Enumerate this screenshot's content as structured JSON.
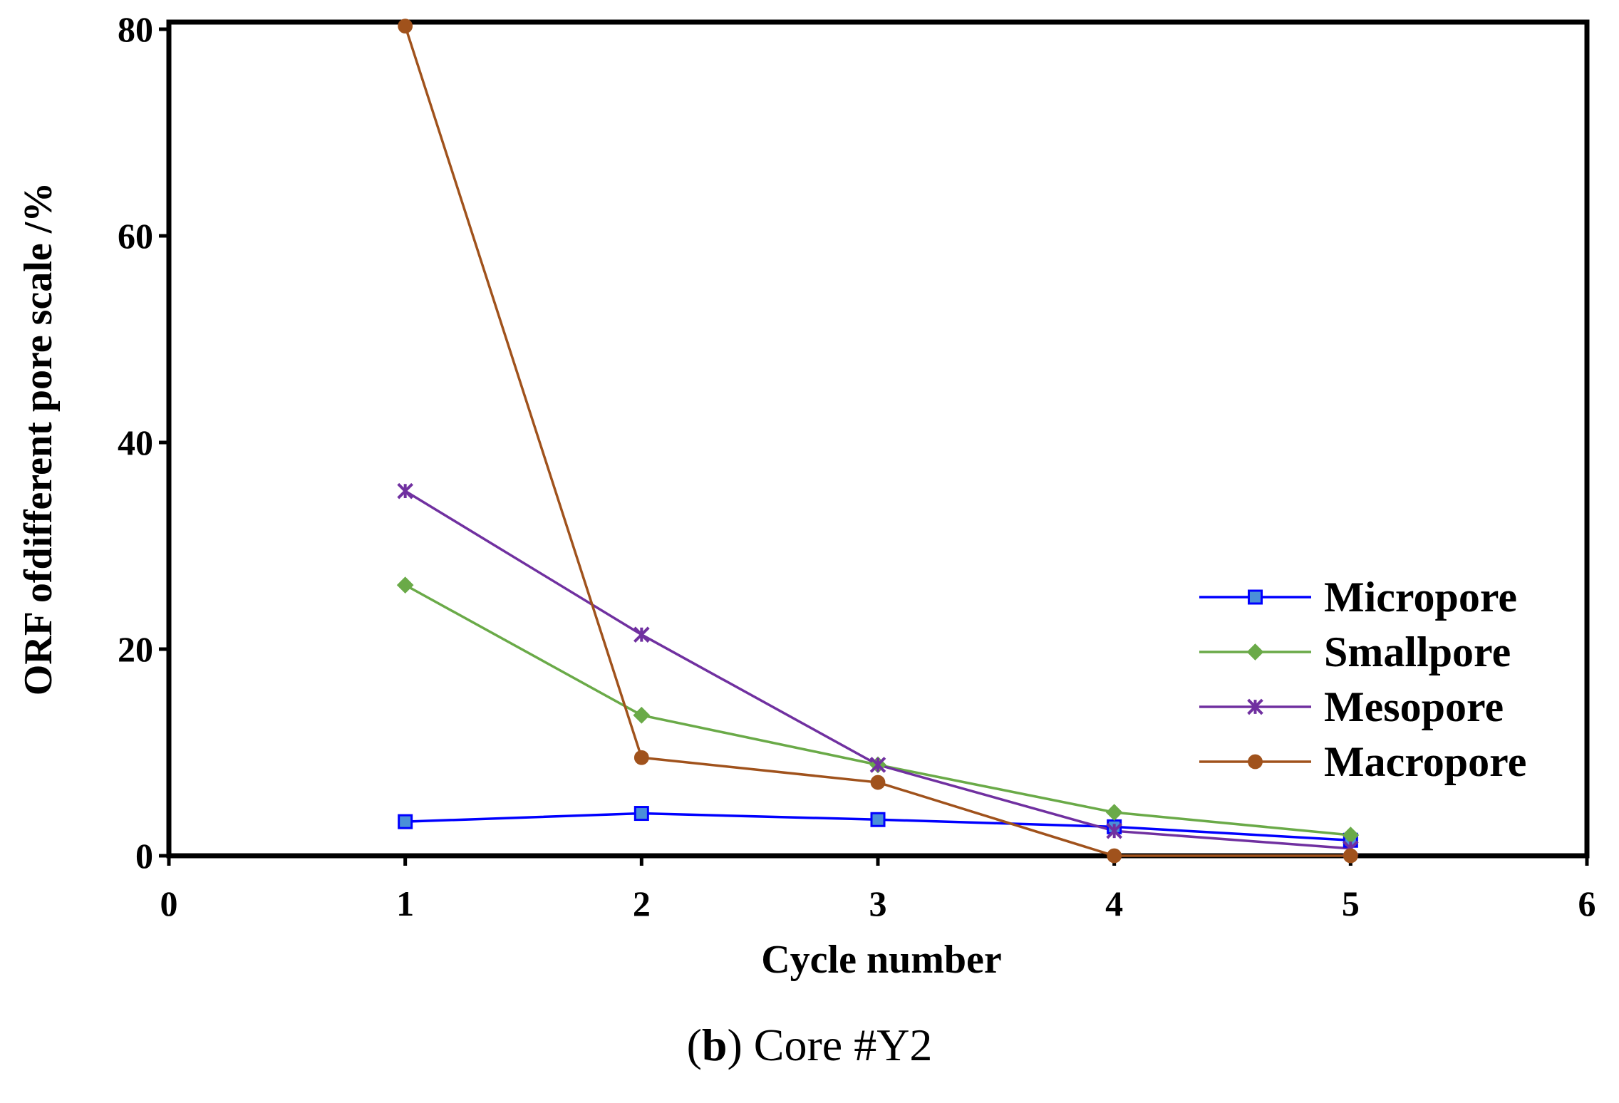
{
  "chart_data": {
    "type": "line",
    "title": "",
    "xlabel": "Cycle number",
    "ylabel": "ORF ofdifferent pore scale /%",
    "xlim": [
      0,
      6
    ],
    "ylim": [
      0,
      80
    ],
    "xticks": [
      0,
      1,
      2,
      3,
      4,
      5,
      6
    ],
    "yticks": [
      0,
      20,
      40,
      60,
      80
    ],
    "grid": false,
    "legend_position": "right",
    "x": [
      1,
      2,
      3,
      4,
      5
    ],
    "series": [
      {
        "name": "Micropore",
        "marker": "square",
        "color": "#0000ff",
        "marker_fill": "#4a90d9",
        "values": [
          3.3,
          4.1,
          3.5,
          2.8,
          1.5
        ]
      },
      {
        "name": "Smallpore",
        "marker": "diamond",
        "color": "#6aaa48",
        "marker_fill": "#6aaa48",
        "values": [
          26.2,
          13.6,
          8.8,
          4.2,
          2.0
        ]
      },
      {
        "name": "Mesopore",
        "marker": "star",
        "color": "#7030a0",
        "marker_fill": "#7030a0",
        "values": [
          35.3,
          21.4,
          8.8,
          2.4,
          0.7
        ]
      },
      {
        "name": "Macropore",
        "marker": "circle",
        "color": "#a0521c",
        "marker_fill": "#a0521c",
        "values": [
          80.3,
          9.5,
          7.1,
          0.0,
          0.0
        ]
      }
    ]
  },
  "caption": {
    "open_paren": "(",
    "letter": "b",
    "rest": ") Core #Y2"
  }
}
